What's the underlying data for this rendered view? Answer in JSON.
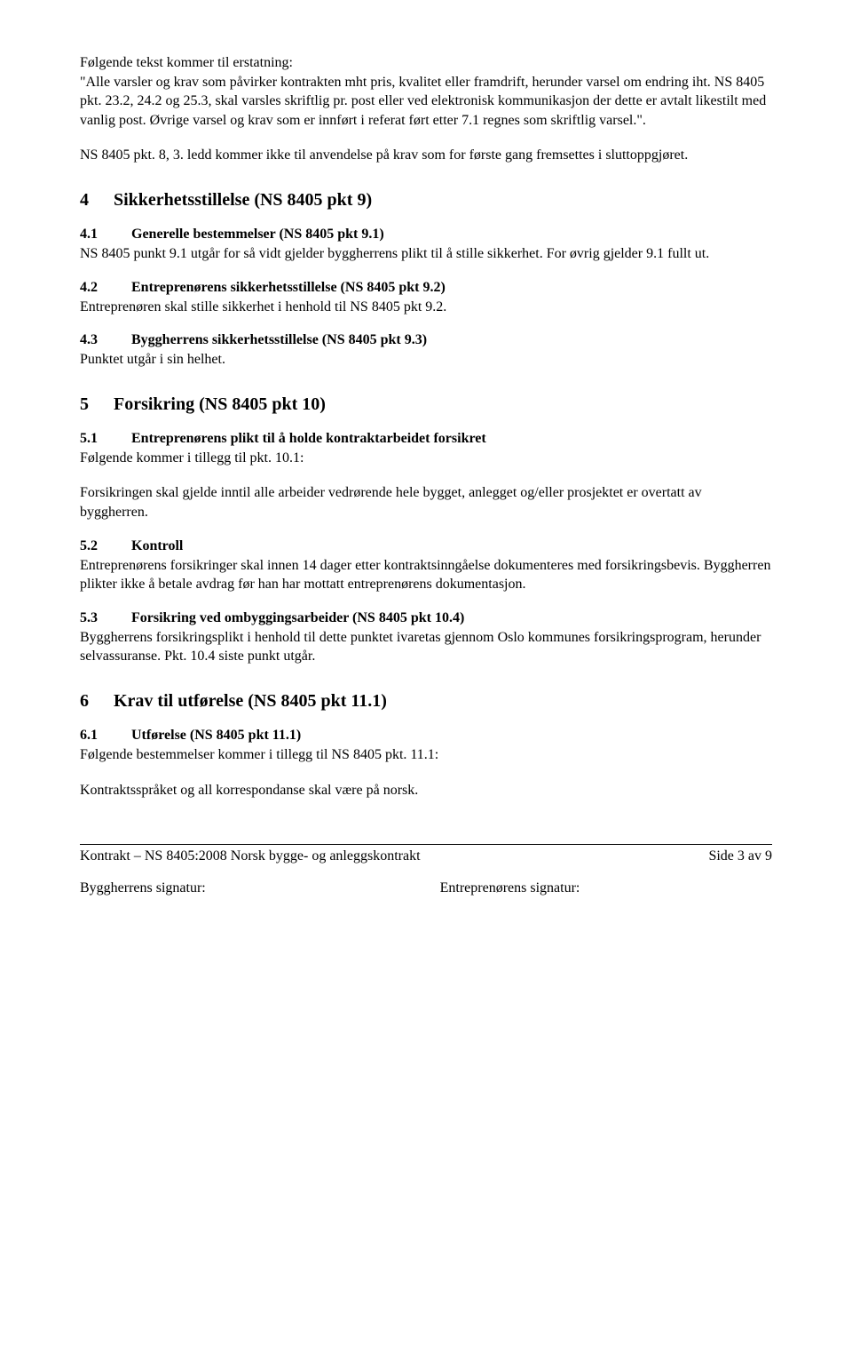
{
  "intro": {
    "line1": "Følgende tekst kommer til erstatning:",
    "body": "\"Alle varsler og krav som påvirker kontrakten mht pris, kvalitet eller framdrift, herunder varsel om endring iht. NS 8405 pkt. 23.2, 24.2 og 25.3, skal varsles skriftlig pr. post eller ved elektronisk kommunikasjon der dette er avtalt likestilt med vanlig post. Øvrige varsel og krav som er innført i referat ført etter 7.1 regnes som skriftlig varsel.\".",
    "p2": "NS 8405 pkt. 8, 3. ledd kommer ikke til anvendelse på krav som for første gang fremsettes i sluttoppgjøret."
  },
  "s4": {
    "num": "4",
    "title": "Sikkerhetsstillelse (NS 8405 pkt 9)",
    "s41": {
      "num": "4.1",
      "title": "Generelle bestemmelser (NS 8405 pkt 9.1)",
      "body": "NS 8405 punkt 9.1 utgår for så vidt gjelder byggherrens plikt til å stille sikkerhet. For øvrig gjelder 9.1 fullt ut."
    },
    "s42": {
      "num": "4.2",
      "title": "Entreprenørens sikkerhetsstillelse (NS 8405 pkt 9.2)",
      "body": "Entreprenøren skal stille sikkerhet i henhold til NS 8405 pkt 9.2."
    },
    "s43": {
      "num": "4.3",
      "title": "Byggherrens sikkerhetsstillelse (NS 8405 pkt 9.3)",
      "body": "Punktet utgår i sin helhet."
    }
  },
  "s5": {
    "num": "5",
    "title": "Forsikring (NS 8405 pkt 10)",
    "s51": {
      "num": "5.1",
      "title": "Entreprenørens plikt til å holde kontraktarbeidet forsikret",
      "line1": "Følgende kommer i tillegg til pkt. 10.1:",
      "body": "Forsikringen skal gjelde inntil alle arbeider vedrørende hele bygget, anlegget og/eller prosjektet er overtatt av byggherren."
    },
    "s52": {
      "num": "5.2",
      "title": "Kontroll",
      "body": "Entreprenørens forsikringer skal innen 14 dager etter kontraktsinngåelse dokumenteres med forsikringsbevis. Byggherren plikter ikke å betale avdrag før han har mottatt entreprenørens dokumentasjon."
    },
    "s53": {
      "num": "5.3",
      "title": "Forsikring ved ombyggingsarbeider (NS 8405 pkt 10.4)",
      "body": "Byggherrens forsikringsplikt i henhold til dette punktet ivaretas gjennom Oslo kommunes forsikringsprogram, herunder selvassuranse. Pkt. 10.4 siste punkt utgår."
    }
  },
  "s6": {
    "num": "6",
    "title": "Krav til utførelse (NS 8405 pkt 11.1)",
    "s61": {
      "num": "6.1",
      "title": "Utførelse (NS 8405 pkt 11.1)",
      "line1": "Følgende bestemmelser kommer i tillegg til NS 8405 pkt. 11.1:",
      "body": "Kontraktsspråket og all korrespondanse skal være på norsk."
    }
  },
  "footer": {
    "left": "Kontrakt – NS 8405:2008 Norsk bygge- og anleggskontrakt",
    "right": "Side 3 av 9",
    "sigLeft": "Byggherrens signatur:",
    "sigRight": "Entreprenørens signatur:"
  }
}
